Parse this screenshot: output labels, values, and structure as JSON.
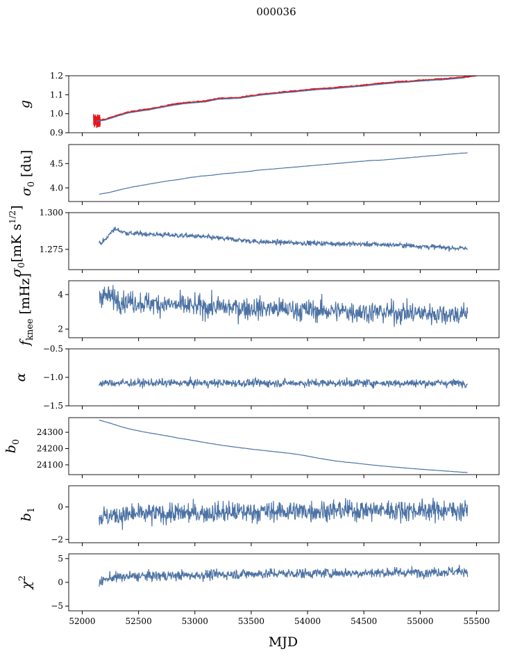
{
  "figure_title": "000036",
  "colors": {
    "series": "#4c72a4",
    "overlay": "#e8141b"
  },
  "chart_data": [
    {
      "id": "g",
      "type": "line",
      "ylabel": "g",
      "ylim": [
        0.9,
        1.2
      ],
      "yticks": [
        0.9,
        1.0,
        1.1,
        1.2
      ],
      "ytick_labels": [
        "0.9",
        "1.0",
        "1.1",
        "1.2"
      ],
      "xlim": [
        51880,
        55700
      ],
      "x": [
        52120,
        52200,
        52300,
        52400,
        52500,
        52600,
        52700,
        52800,
        52900,
        53000,
        53100,
        53200,
        53300,
        53400,
        53500,
        53600,
        53700,
        53800,
        53900,
        54000,
        54100,
        54200,
        54300,
        54400,
        54500,
        54600,
        54700,
        54800,
        54900,
        55000,
        55100,
        55200,
        55300,
        55400
      ],
      "y": [
        0.96,
        0.966,
        0.985,
        1.003,
        1.013,
        1.021,
        1.033,
        1.044,
        1.053,
        1.058,
        1.063,
        1.076,
        1.079,
        1.082,
        1.091,
        1.099,
        1.105,
        1.111,
        1.116,
        1.122,
        1.128,
        1.13,
        1.136,
        1.141,
        1.146,
        1.153,
        1.158,
        1.164,
        1.167,
        1.172,
        1.176,
        1.179,
        1.184,
        1.19
      ],
      "overlay": {
        "x": [
          52120,
          52200,
          52300,
          52400,
          52500,
          52600,
          52700,
          52800,
          52900,
          53000,
          53100,
          53200,
          53300,
          53400,
          53500,
          53600,
          53700,
          53800,
          53900,
          54000,
          54100,
          54200,
          54300,
          54400,
          54500,
          54600,
          54700,
          54800,
          54900,
          55000,
          55100,
          55200,
          55300,
          55400,
          55500
        ],
        "y": [
          0.963,
          0.97,
          0.989,
          1.007,
          1.017,
          1.025,
          1.037,
          1.048,
          1.057,
          1.062,
          1.067,
          1.08,
          1.083,
          1.086,
          1.095,
          1.103,
          1.109,
          1.115,
          1.12,
          1.126,
          1.132,
          1.134,
          1.14,
          1.145,
          1.15,
          1.157,
          1.162,
          1.168,
          1.171,
          1.176,
          1.18,
          1.183,
          1.188,
          1.194,
          1.2
        ],
        "jitter_segment": {
          "x_range": [
            52100,
            52160
          ],
          "y_range": [
            0.925,
            1.0
          ]
        }
      }
    },
    {
      "id": "sigma0-du",
      "type": "line",
      "ylabel": "σ₀ [du]",
      "ylim": [
        3.72,
        4.89
      ],
      "yticks": [
        4.0,
        4.5
      ],
      "ytick_labels": [
        "4.0",
        "4.5"
      ],
      "xlim": [
        51880,
        55700
      ],
      "x": [
        52150,
        52250,
        52350,
        52450,
        52550,
        52650,
        52750,
        52850,
        52950,
        53050,
        53150,
        53250,
        53350,
        53450,
        53550,
        53650,
        53750,
        53850,
        53950,
        54050,
        54150,
        54250,
        54350,
        54450,
        54550,
        54650,
        54750,
        54850,
        54950,
        55050,
        55150,
        55250,
        55350,
        55420
      ],
      "y": [
        3.87,
        3.91,
        3.97,
        4.02,
        4.06,
        4.1,
        4.14,
        4.17,
        4.21,
        4.24,
        4.26,
        4.29,
        4.31,
        4.33,
        4.36,
        4.38,
        4.4,
        4.42,
        4.44,
        4.46,
        4.48,
        4.5,
        4.52,
        4.54,
        4.56,
        4.57,
        4.59,
        4.61,
        4.63,
        4.65,
        4.67,
        4.69,
        4.71,
        4.72
      ]
    },
    {
      "id": "sigma0-mk",
      "type": "line",
      "ylabel": "σ₀[mK s^(1/2)]",
      "ylim": [
        1.2612,
        1.3
      ],
      "yticks": [
        1.275,
        1.3
      ],
      "ytick_labels": [
        "1.275",
        "1.300"
      ],
      "xlim": [
        51880,
        55700
      ],
      "trend": {
        "x": [
          52150,
          52200,
          52280,
          52400,
          53000,
          53600,
          54200,
          54800,
          55400
        ],
        "y": [
          1.279,
          1.281,
          1.289,
          1.286,
          1.284,
          1.28,
          1.279,
          1.278,
          1.2755
        ]
      },
      "noise_sd": 0.0012,
      "x_range": [
        52150,
        55420
      ]
    },
    {
      "id": "f-knee",
      "type": "line",
      "ylabel": "f_knee [mHz]",
      "ylim": [
        1.5,
        4.8
      ],
      "yticks": [
        2,
        4
      ],
      "ytick_labels": [
        "2",
        "4"
      ],
      "xlim": [
        51880,
        55700
      ],
      "trend": {
        "x": [
          52150,
          52400,
          53000,
          53600,
          54200,
          54800,
          55400
        ],
        "y": [
          4.0,
          3.6,
          3.3,
          3.2,
          3.05,
          2.95,
          2.85
        ]
      },
      "noise_sd": 0.45,
      "x_range": [
        52150,
        55420
      ]
    },
    {
      "id": "alpha",
      "type": "line",
      "ylabel": "α",
      "ylim": [
        -1.5,
        -0.5
      ],
      "yticks": [
        -1.5,
        -1.0,
        -0.5
      ],
      "ytick_labels": [
        "−1.5",
        "−1.0",
        "−0.5"
      ],
      "xlim": [
        51880,
        55700
      ],
      "trend": {
        "x": [
          52150,
          55420
        ],
        "y": [
          -1.1,
          -1.1
        ]
      },
      "noise_sd": 0.05,
      "x_range": [
        52150,
        55420
      ]
    },
    {
      "id": "b0",
      "type": "line",
      "ylabel": "b₀",
      "ylim": [
        24040,
        24390
      ],
      "yticks": [
        24100,
        24200,
        24300
      ],
      "ytick_labels": [
        "24100",
        "24200",
        "24300"
      ],
      "xlim": [
        51880,
        55700
      ],
      "x": [
        52150,
        52250,
        52350,
        52450,
        52550,
        52650,
        52750,
        52850,
        52950,
        53050,
        53150,
        53250,
        53350,
        53450,
        53550,
        53650,
        53750,
        53850,
        53950,
        54050,
        54150,
        54250,
        54350,
        54450,
        54550,
        54650,
        54750,
        54850,
        54950,
        55050,
        55150,
        55250,
        55350,
        55420
      ],
      "y": [
        24375,
        24356,
        24333,
        24316,
        24302,
        24290,
        24278,
        24265,
        24254,
        24242,
        24230,
        24219,
        24210,
        24201,
        24193,
        24185,
        24178,
        24170,
        24160,
        24147,
        24135,
        24124,
        24116,
        24109,
        24101,
        24094,
        24088,
        24082,
        24076,
        24071,
        24066,
        24061,
        24056,
        24053
      ]
    },
    {
      "id": "b1",
      "type": "line",
      "ylabel": "b₁",
      "ylim": [
        -2.2,
        1.3
      ],
      "yticks": [
        -2,
        0
      ],
      "ytick_labels": [
        "−2",
        "0"
      ],
      "xlim": [
        51880,
        55700
      ],
      "trend": {
        "x": [
          52150,
          52500,
          53500,
          54500,
          55420
        ],
        "y": [
          -0.6,
          -0.45,
          -0.3,
          -0.2,
          -0.2
        ]
      },
      "noise_sd": 0.45,
      "x_range": [
        52150,
        55420
      ]
    },
    {
      "id": "chi2",
      "type": "line",
      "ylabel": "χ²",
      "ylim": [
        -6,
        6
      ],
      "yticks": [
        -5,
        0,
        5
      ],
      "ytick_labels": [
        "−5",
        "0",
        "5"
      ],
      "xlim": [
        51880,
        55700
      ],
      "trend": {
        "x": [
          52150,
          52250,
          52500,
          53000,
          53500,
          54000,
          54500,
          55000,
          55420
        ],
        "y": [
          0.0,
          1.0,
          1.3,
          1.5,
          1.8,
          1.9,
          2.0,
          2.1,
          2.4
        ]
      },
      "noise_sd": 0.75,
      "x_range": [
        52150,
        55420
      ]
    }
  ],
  "x_axis": {
    "label": "MJD",
    "ticks": [
      52000,
      52500,
      53000,
      53500,
      54000,
      54500,
      55000,
      55500
    ],
    "tick_labels": [
      "52000",
      "52500",
      "53000",
      "53500",
      "54000",
      "54500",
      "55000",
      "55500"
    ]
  }
}
